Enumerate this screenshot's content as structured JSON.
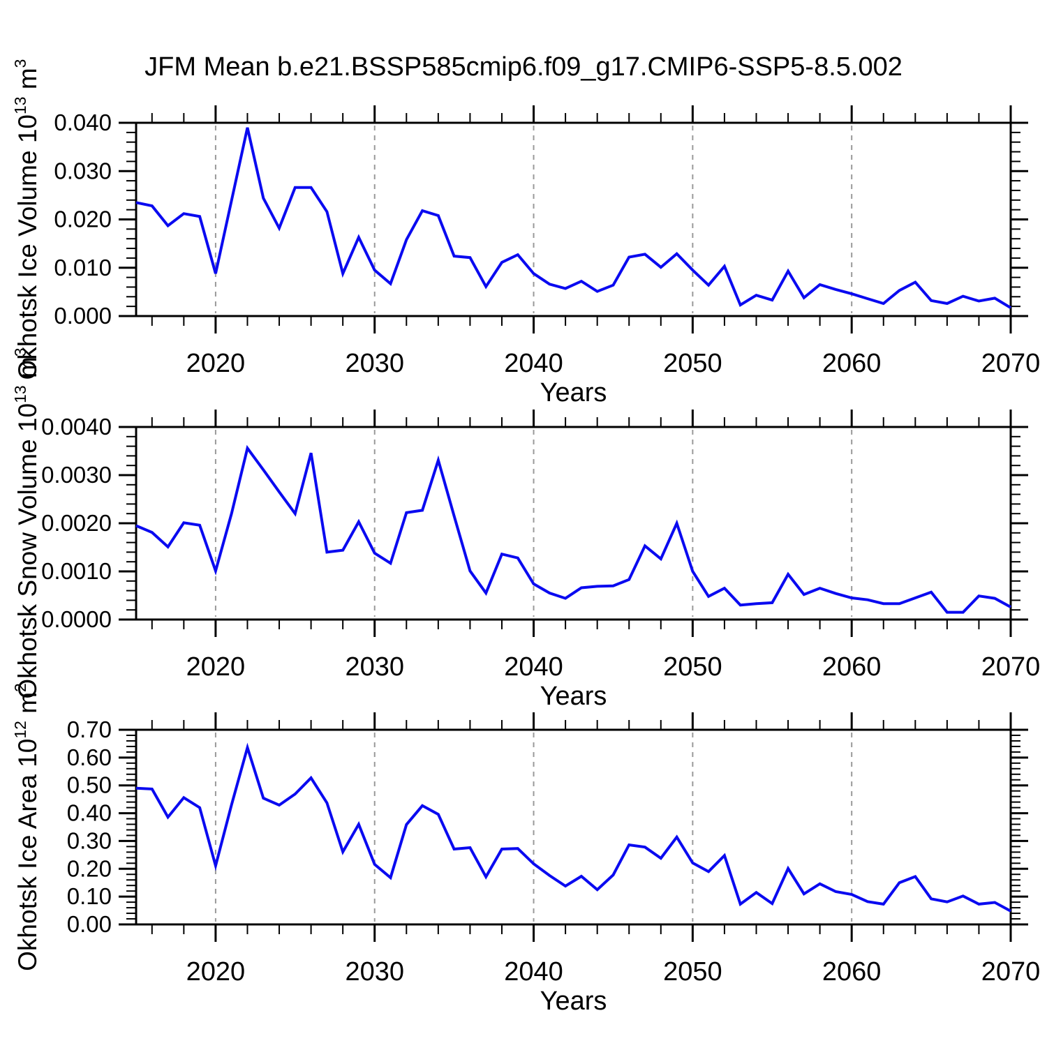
{
  "title": "JFM Mean b.e21.BSSP585cmip6.f09_g17.CMIP6-SSP5-8.5.002",
  "colors": {
    "line": "#0a0af0",
    "axis": "#000000",
    "grid": "#999999",
    "background": "#ffffff",
    "text": "#000000"
  },
  "chart_data": {
    "type": "line",
    "title": "JFM Mean b.e21.BSSP585cmip6.f09_g17.CMIP6-SSP5-8.5.002",
    "xlabel": "Years",
    "xlim": [
      2015,
      2070
    ],
    "xticks_major": [
      2020,
      2030,
      2040,
      2050,
      2060,
      2070
    ],
    "xtick_labels": [
      "2020",
      "2030",
      "2040",
      "2050",
      "2060",
      "2070"
    ],
    "xticks_minor_step": 2,
    "grid_vlines_years": [
      2020,
      2030,
      2040,
      2050,
      2060
    ],
    "grid_style": "dashed",
    "legend": "none",
    "x_years": [
      2015,
      2016,
      2017,
      2018,
      2019,
      2020,
      2021,
      2022,
      2023,
      2024,
      2025,
      2026,
      2027,
      2028,
      2029,
      2030,
      2031,
      2032,
      2033,
      2034,
      2035,
      2036,
      2037,
      2038,
      2039,
      2040,
      2041,
      2042,
      2043,
      2044,
      2045,
      2046,
      2047,
      2048,
      2049,
      2050,
      2051,
      2052,
      2053,
      2054,
      2055,
      2056,
      2057,
      2058,
      2059,
      2060,
      2061,
      2062,
      2063,
      2064,
      2065,
      2066,
      2067,
      2068,
      2069,
      2070
    ],
    "panels": [
      {
        "name": "ice-volume",
        "ylabel_plain": "Okhotsk Ice Volume 10^13 m^3",
        "ylabel_parts": [
          {
            "t": "Okhotsk Ice Volume 10"
          },
          {
            "t": "13",
            "sup": true
          },
          {
            "t": " m"
          },
          {
            "t": "3",
            "sup": true
          }
        ],
        "ylim": [
          0.0,
          0.04
        ],
        "yticks_values": [
          0.0,
          0.01,
          0.02,
          0.03,
          0.04
        ],
        "yticks_labels": [
          "0.000",
          "0.010",
          "0.020",
          "0.030",
          "0.040"
        ],
        "yminor_step": 0.002,
        "values": [
          0.0235,
          0.0228,
          0.0187,
          0.0212,
          0.0206,
          0.0088,
          0.0239,
          0.039,
          0.0244,
          0.0182,
          0.0266,
          0.0266,
          0.0216,
          0.0088,
          0.0163,
          0.0095,
          0.0067,
          0.0158,
          0.0218,
          0.0208,
          0.0124,
          0.0121,
          0.0061,
          0.0111,
          0.0127,
          0.0088,
          0.0066,
          0.0057,
          0.0072,
          0.0051,
          0.0064,
          0.0122,
          0.0128,
          0.0101,
          0.0129,
          0.0095,
          0.0064,
          0.0103,
          0.0023,
          0.0043,
          0.0033,
          0.0093,
          0.0038,
          0.0065,
          0.0055,
          0.0046,
          0.0036,
          0.0026,
          0.0053,
          0.007,
          0.0032,
          0.0026,
          0.0041,
          0.0031,
          0.0037,
          0.0017
        ]
      },
      {
        "name": "snow-volume",
        "ylabel_plain": "Okhotsk Snow Volume 10^13 m^3",
        "ylabel_parts": [
          {
            "t": "Okhotsk Snow Volume 10"
          },
          {
            "t": "13",
            "sup": true
          },
          {
            "t": " m"
          },
          {
            "t": "3",
            "sup": true
          }
        ],
        "ylim": [
          0.0,
          0.004
        ],
        "yticks_values": [
          0.0,
          0.001,
          0.002,
          0.003,
          0.004
        ],
        "yticks_labels": [
          "0.0000",
          "0.0010",
          "0.0020",
          "0.0030",
          "0.0040"
        ],
        "yminor_step": 0.0002,
        "values": [
          0.00195,
          0.00181,
          0.00151,
          0.00201,
          0.00196,
          0.00101,
          0.0022,
          0.00356,
          0.00311,
          0.00265,
          0.0022,
          0.00346,
          0.0014,
          0.00144,
          0.00203,
          0.00138,
          0.00117,
          0.00222,
          0.00227,
          0.00331,
          0.00215,
          0.00101,
          0.00055,
          0.00136,
          0.00128,
          0.00074,
          0.00055,
          0.00044,
          0.00066,
          0.00069,
          0.0007,
          0.00083,
          0.00153,
          0.00126,
          0.002,
          0.001,
          0.00048,
          0.00065,
          0.0003,
          0.00033,
          0.00035,
          0.00094,
          0.00052,
          0.00065,
          0.00054,
          0.00045,
          0.00041,
          0.00033,
          0.00033,
          0.00045,
          0.00057,
          0.00015,
          0.00015,
          0.00049,
          0.00044,
          0.00026
        ]
      },
      {
        "name": "ice-area",
        "ylabel_plain": "Okhotsk Ice Area 10^12 m^2",
        "ylabel_parts": [
          {
            "t": "Okhotsk Ice Area 10"
          },
          {
            "t": "12",
            "sup": true
          },
          {
            "t": " m"
          },
          {
            "t": "2",
            "sup": true
          }
        ],
        "ylim": [
          0.0,
          0.7
        ],
        "yticks_values": [
          0.0,
          0.1,
          0.2,
          0.3,
          0.4,
          0.5,
          0.6,
          0.7
        ],
        "yticks_labels": [
          "0.00",
          "0.10",
          "0.20",
          "0.30",
          "0.40",
          "0.50",
          "0.60",
          "0.70"
        ],
        "yminor_step": 0.02,
        "values": [
          0.49,
          0.487,
          0.386,
          0.456,
          0.42,
          0.211,
          0.43,
          0.636,
          0.454,
          0.429,
          0.469,
          0.527,
          0.437,
          0.261,
          0.36,
          0.216,
          0.168,
          0.359,
          0.427,
          0.396,
          0.271,
          0.276,
          0.171,
          0.271,
          0.273,
          0.218,
          0.176,
          0.138,
          0.173,
          0.125,
          0.178,
          0.286,
          0.278,
          0.238,
          0.314,
          0.221,
          0.19,
          0.248,
          0.073,
          0.115,
          0.075,
          0.201,
          0.11,
          0.146,
          0.118,
          0.108,
          0.082,
          0.073,
          0.15,
          0.172,
          0.092,
          0.081,
          0.102,
          0.073,
          0.079,
          0.048
        ]
      }
    ]
  }
}
